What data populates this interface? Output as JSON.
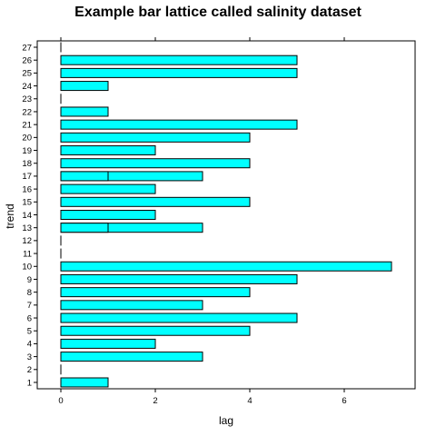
{
  "chart_data": {
    "type": "bar",
    "orientation": "horizontal",
    "title": "Example bar lattice called salinity dataset",
    "xlabel": "lag",
    "ylabel": "trend",
    "categories": [
      "1",
      "2",
      "3",
      "4",
      "5",
      "6",
      "7",
      "8",
      "9",
      "10",
      "11",
      "12",
      "13",
      "14",
      "15",
      "16",
      "17",
      "18",
      "19",
      "20",
      "21",
      "22",
      "23",
      "24",
      "25",
      "26",
      "27"
    ],
    "values": [
      1,
      0,
      3,
      2,
      4,
      5,
      3,
      4,
      5,
      7,
      0,
      0,
      3,
      2,
      4,
      2,
      3,
      4,
      2,
      4,
      5,
      1,
      0,
      1,
      5,
      5,
      0
    ],
    "overlay_values": {
      "13": 1,
      "17": 1
    },
    "xlim": [
      -0.5,
      7.5
    ],
    "xticks": [
      0,
      2,
      4,
      6
    ],
    "tick_labels_position": "bottom",
    "bar_color": "#00FFFF",
    "bar_edge_color": "#000000",
    "grid": false
  }
}
